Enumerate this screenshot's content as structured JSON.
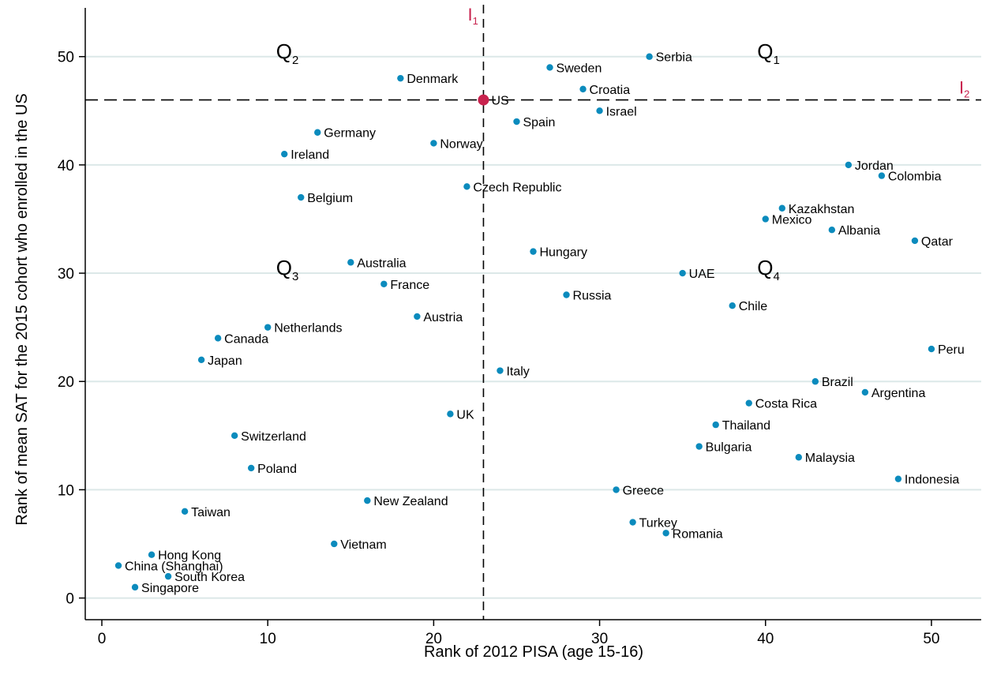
{
  "chart_data": {
    "type": "scatter",
    "xlabel": "Rank of 2012 PISA (age 15-16)",
    "ylabel": "Rank of mean SAT for the 2015 cohort who enrolled in the US",
    "xlim": [
      -1,
      53
    ],
    "ylim": [
      -2,
      54.5
    ],
    "xticks": [
      0,
      10,
      20,
      30,
      40,
      50
    ],
    "yticks": [
      0,
      10,
      20,
      30,
      40,
      50
    ],
    "grid": "horizontal",
    "colors": {
      "points": "#0b8bbd",
      "highlight": "#c8234e",
      "grid": "#dce8e8"
    },
    "reference_lines": [
      {
        "orientation": "vertical",
        "value": 23,
        "label": "I",
        "subscript": "1"
      },
      {
        "orientation": "horizontal",
        "value": 46,
        "label": "I",
        "subscript": "2"
      }
    ],
    "quadrant_labels": [
      {
        "label": "Q",
        "subscript": "1",
        "x": 39.5,
        "y": 50.5
      },
      {
        "label": "Q",
        "subscript": "2",
        "x": 10.5,
        "y": 50.5
      },
      {
        "label": "Q",
        "subscript": "3",
        "x": 10.5,
        "y": 30.5
      },
      {
        "label": "Q",
        "subscript": "4",
        "x": 39.5,
        "y": 30.5
      }
    ],
    "points": [
      {
        "name": "Serbia",
        "x": 33,
        "y": 50
      },
      {
        "name": "Sweden",
        "x": 27,
        "y": 49
      },
      {
        "name": "Denmark",
        "x": 18,
        "y": 48
      },
      {
        "name": "Croatia",
        "x": 29,
        "y": 47
      },
      {
        "name": "US",
        "x": 23,
        "y": 46,
        "highlight": true
      },
      {
        "name": "Israel",
        "x": 30,
        "y": 45
      },
      {
        "name": "Spain",
        "x": 25,
        "y": 44
      },
      {
        "name": "Germany",
        "x": 13,
        "y": 43
      },
      {
        "name": "Norway",
        "x": 20,
        "y": 42
      },
      {
        "name": "Ireland",
        "x": 11,
        "y": 41
      },
      {
        "name": "Jordan",
        "x": 45,
        "y": 40
      },
      {
        "name": "Colombia",
        "x": 47,
        "y": 39
      },
      {
        "name": "Czech Republic",
        "x": 22,
        "y": 38
      },
      {
        "name": "Belgium",
        "x": 12,
        "y": 37
      },
      {
        "name": "Kazakhstan",
        "x": 41,
        "y": 36
      },
      {
        "name": "Mexico",
        "x": 40,
        "y": 35
      },
      {
        "name": "Albania",
        "x": 44,
        "y": 34
      },
      {
        "name": "Qatar",
        "x": 49,
        "y": 33
      },
      {
        "name": "Hungary",
        "x": 26,
        "y": 32
      },
      {
        "name": "Australia",
        "x": 15,
        "y": 31
      },
      {
        "name": "UAE",
        "x": 35,
        "y": 30
      },
      {
        "name": "France",
        "x": 17,
        "y": 29
      },
      {
        "name": "Russia",
        "x": 28,
        "y": 28
      },
      {
        "name": "Chile",
        "x": 38,
        "y": 27
      },
      {
        "name": "Austria",
        "x": 19,
        "y": 26
      },
      {
        "name": "Netherlands",
        "x": 10,
        "y": 25
      },
      {
        "name": "Canada",
        "x": 7,
        "y": 24
      },
      {
        "name": "Peru",
        "x": 50,
        "y": 23
      },
      {
        "name": "Japan",
        "x": 6,
        "y": 22
      },
      {
        "name": "Italy",
        "x": 24,
        "y": 21
      },
      {
        "name": "Brazil",
        "x": 43,
        "y": 20
      },
      {
        "name": "Argentina",
        "x": 46,
        "y": 19
      },
      {
        "name": "Costa Rica",
        "x": 39,
        "y": 18
      },
      {
        "name": "UK",
        "x": 21,
        "y": 17
      },
      {
        "name": "Thailand",
        "x": 37,
        "y": 16
      },
      {
        "name": "Switzerland",
        "x": 8,
        "y": 15
      },
      {
        "name": "Bulgaria",
        "x": 36,
        "y": 14
      },
      {
        "name": "Malaysia",
        "x": 42,
        "y": 13
      },
      {
        "name": "Poland",
        "x": 9,
        "y": 12
      },
      {
        "name": "Indonesia",
        "x": 48,
        "y": 11
      },
      {
        "name": "Greece",
        "x": 31,
        "y": 10
      },
      {
        "name": "New Zealand",
        "x": 16,
        "y": 9
      },
      {
        "name": "Taiwan",
        "x": 5,
        "y": 8
      },
      {
        "name": "Turkey",
        "x": 32,
        "y": 7
      },
      {
        "name": "Romania",
        "x": 34,
        "y": 6
      },
      {
        "name": "Vietnam",
        "x": 14,
        "y": 5
      },
      {
        "name": "Hong Kong",
        "x": 3,
        "y": 4
      },
      {
        "name": "China (Shanghai)",
        "x": 1,
        "y": 3
      },
      {
        "name": "South Korea",
        "x": 4,
        "y": 2
      },
      {
        "name": "Singapore",
        "x": 2,
        "y": 1
      }
    ]
  }
}
